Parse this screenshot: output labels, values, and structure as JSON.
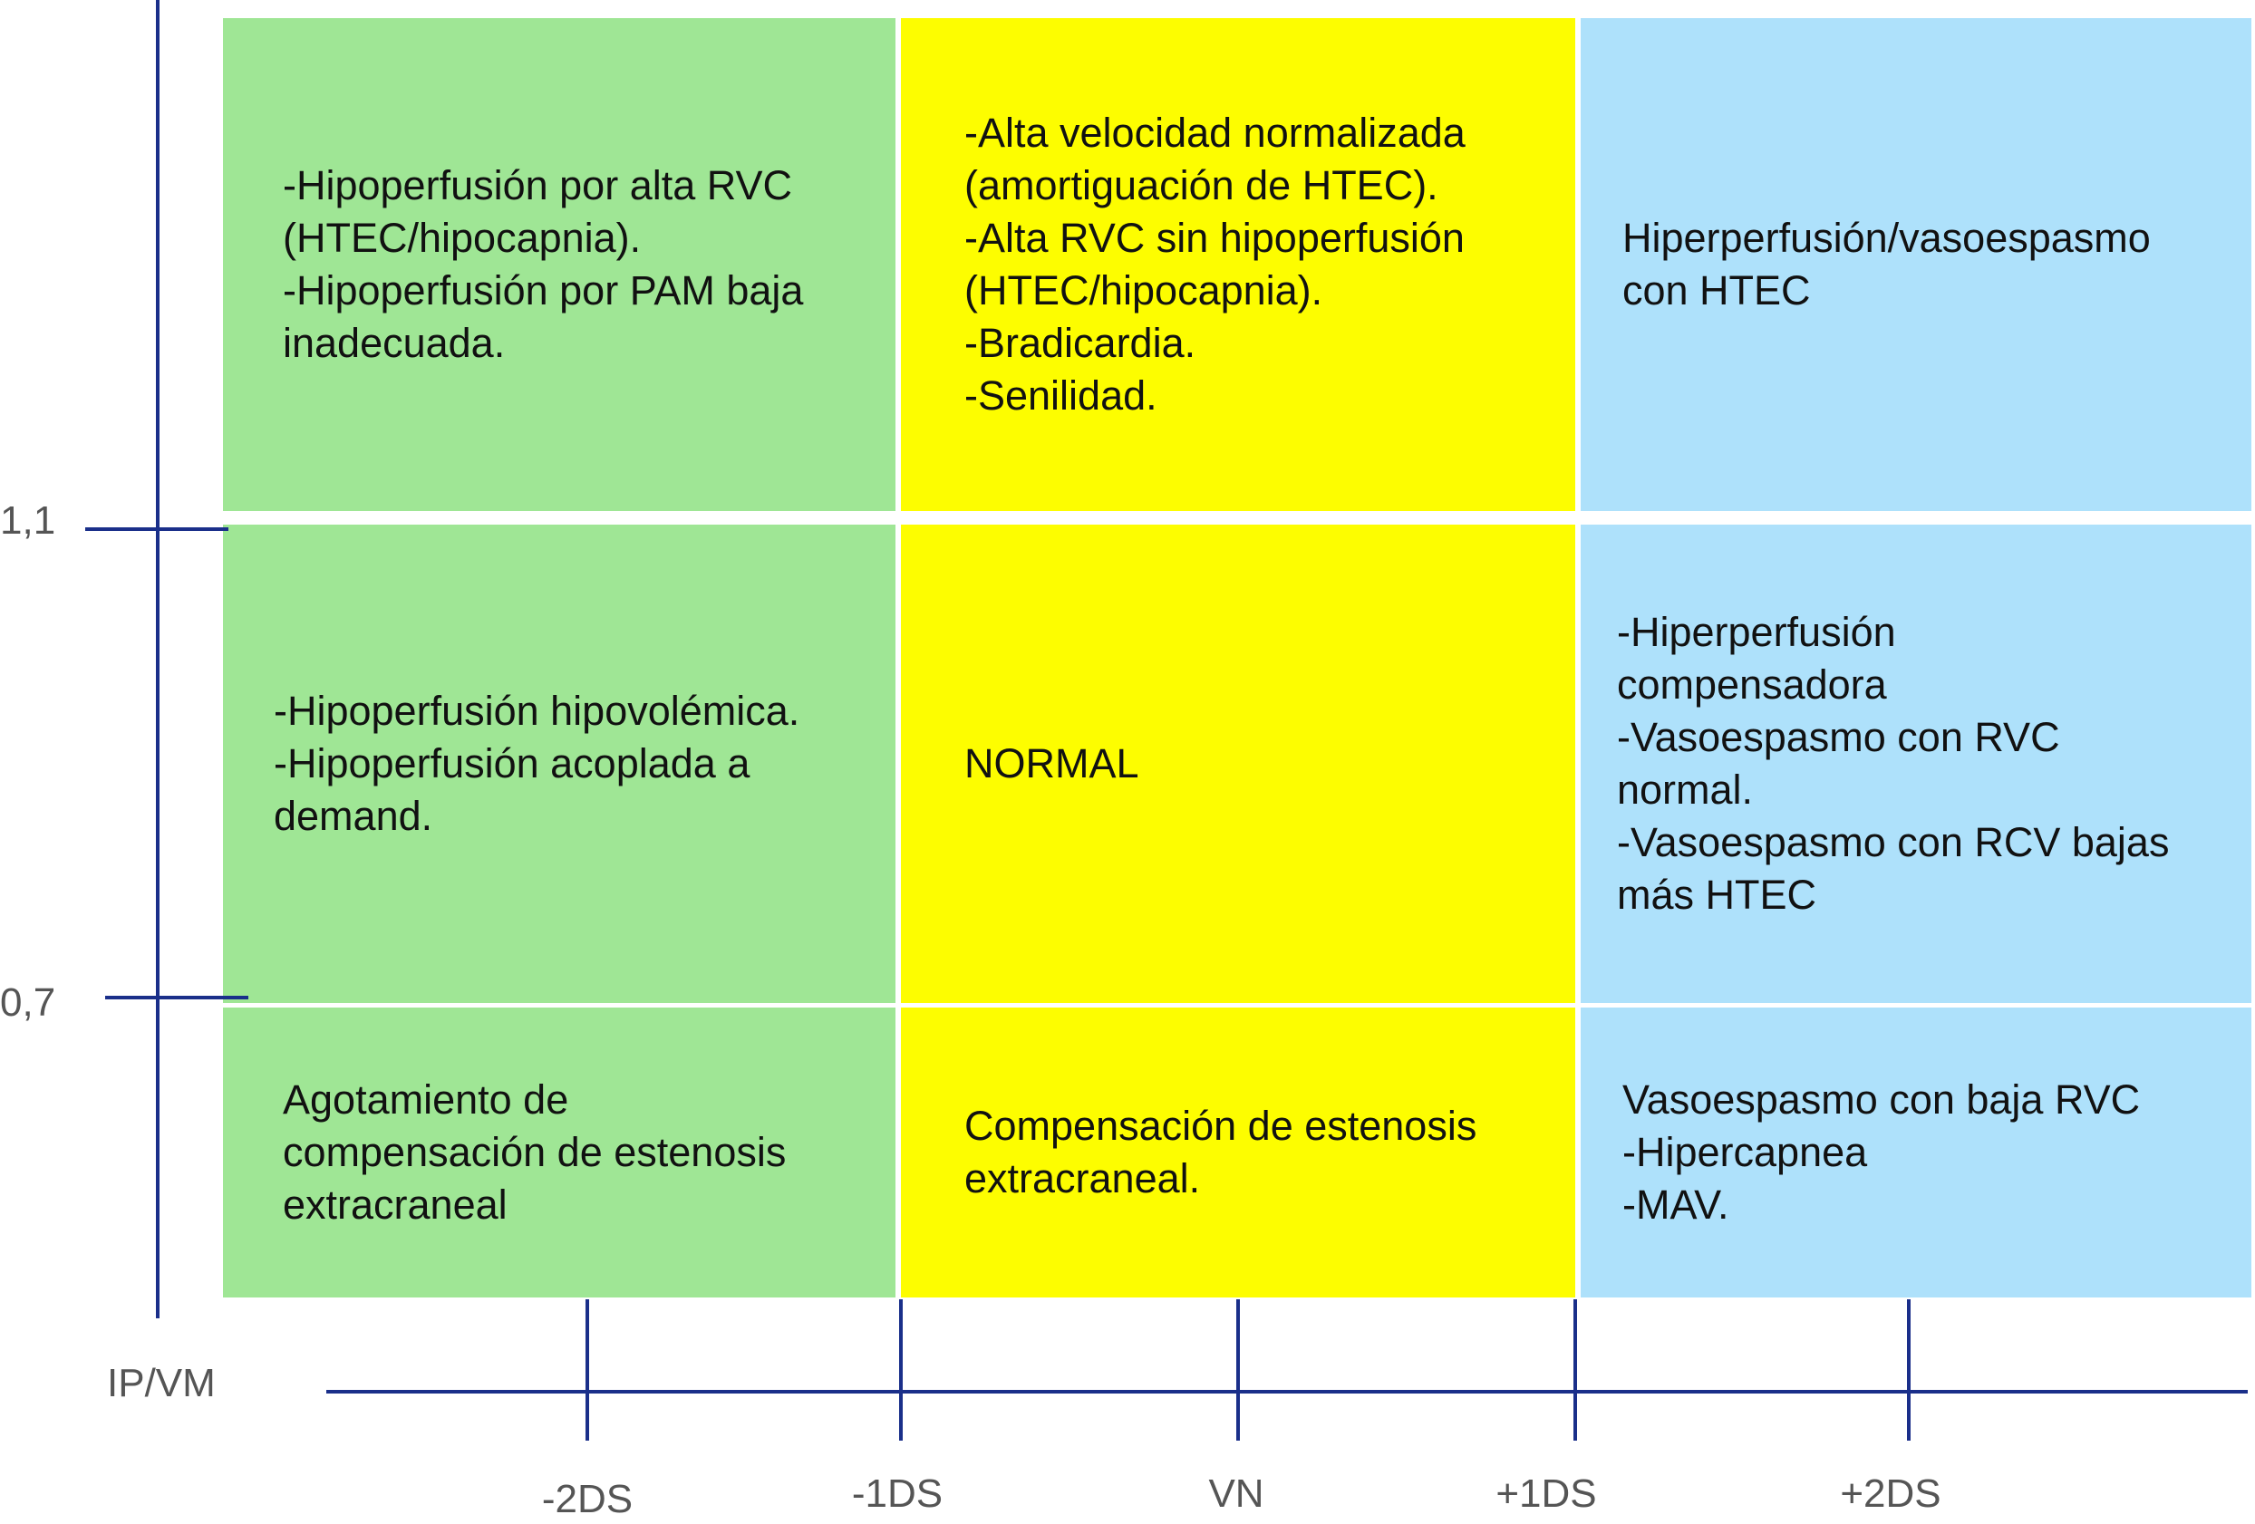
{
  "colors": {
    "left_column": "#9fe695",
    "center_column": "#fdfd00",
    "right_column": "#aee1fb",
    "axis": "#1a2f8a",
    "axis_label": "#555555"
  },
  "y_axis": {
    "title": "IP/VM",
    "ticks": [
      "1,1",
      "0,7"
    ]
  },
  "x_axis": {
    "ticks": [
      "-2DS",
      "-1DS",
      "VN",
      "+1DS",
      "+2DS"
    ]
  },
  "grid": {
    "top": {
      "left": "-Hipoperfusión por alta RVC\n(HTEC/hipocapnia).\n-Hipoperfusión por PAM baja\ninadecuada.",
      "center": "-Alta velocidad normalizada\n(amortiguación de HTEC).\n-Alta RVC sin hipoperfusión\n(HTEC/hipocapnia).\n-Bradicardia.\n-Senilidad.",
      "right": "Hiperperfusión/vasoespasmo\ncon HTEC"
    },
    "middle": {
      "left": "-Hipoperfusión hipovolémica.\n-Hipoperfusión acoplada a\ndemand.",
      "center": "NORMAL",
      "right": "-Hiperperfusión\ncompensadora\n-Vasoespasmo con RVC\nnormal.\n-Vasoespasmo con RCV bajas\nmás HTEC"
    },
    "bottom": {
      "left": "Agotamiento de\ncompensación de estenosis\nextracraneal",
      "center": "Compensación de estenosis\nextracraneal.",
      "right": "Vasoespasmo con baja RVC\n-Hipercapnea\n-MAV."
    }
  }
}
